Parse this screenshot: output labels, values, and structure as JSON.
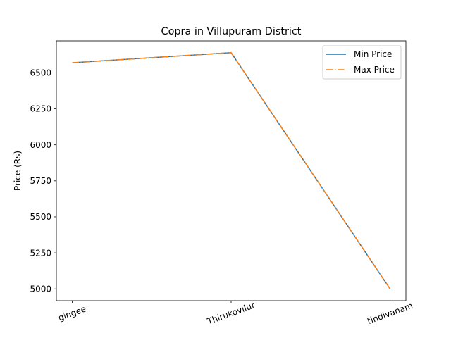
{
  "chart_data": {
    "type": "line",
    "title": "Copra in Villupuram District",
    "xlabel": "",
    "ylabel": "Price (Rs)",
    "categories": [
      "gingee",
      "Thirukovilur",
      "tindivanam"
    ],
    "series": [
      {
        "name": "Min Price",
        "values": [
          6570,
          6640,
          5000
        ],
        "color": "#1f77b4",
        "style": "solid"
      },
      {
        "name": "Max Price",
        "values": [
          6570,
          6640,
          5000
        ],
        "color": "#ff7f0e",
        "style": "dashdot"
      }
    ],
    "ylim": [
      4918,
      6722
    ],
    "yticks": [
      5000,
      5250,
      5500,
      5750,
      6000,
      6250,
      6500
    ],
    "grid": false,
    "legend": "top-right"
  }
}
